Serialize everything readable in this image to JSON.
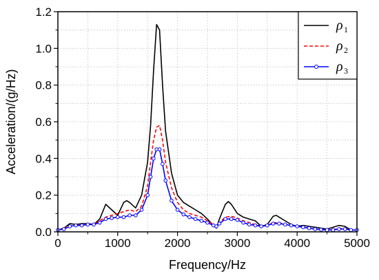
{
  "chart_data": {
    "type": "line",
    "title": "",
    "xlabel": "Frequency/Hz",
    "ylabel": "Acceleration/(g/Hz)",
    "xlim": [
      0,
      5000
    ],
    "ylim": [
      0,
      1.2
    ],
    "xticks": [
      0,
      1000,
      2000,
      3000,
      4000,
      5000
    ],
    "yticks": [
      0.0,
      0.2,
      0.4,
      0.6,
      0.8,
      1.0,
      1.2
    ],
    "xtick_labels": [
      "0",
      "1000",
      "2000",
      "3000",
      "4000",
      "5000"
    ],
    "ytick_labels": [
      "0.0",
      "0.2",
      "0.4",
      "0.6",
      "0.8",
      "1.0",
      "1.2"
    ],
    "grid": true,
    "legend_position": "top-right",
    "series": [
      {
        "name": "ρ",
        "subscript": "1",
        "color": "#000000",
        "style": "solid",
        "marker": "none",
        "x": [
          0,
          100,
          200,
          300,
          400,
          500,
          600,
          700,
          800,
          900,
          1000,
          1100,
          1150,
          1200,
          1300,
          1400,
          1500,
          1550,
          1600,
          1650,
          1700,
          1750,
          1800,
          1900,
          2000,
          2100,
          2200,
          2300,
          2400,
          2500,
          2600,
          2650,
          2700,
          2800,
          2850,
          2900,
          3000,
          3100,
          3200,
          3300,
          3400,
          3500,
          3600,
          3650,
          3700,
          3800,
          3900,
          4000,
          4100,
          4200,
          4300,
          4400,
          4500,
          4600,
          4700,
          4800,
          4900,
          5000
        ],
        "y": [
          0.01,
          0.02,
          0.045,
          0.04,
          0.045,
          0.045,
          0.04,
          0.07,
          0.15,
          0.12,
          0.09,
          0.16,
          0.17,
          0.16,
          0.13,
          0.2,
          0.38,
          0.58,
          0.88,
          1.13,
          1.1,
          0.8,
          0.55,
          0.32,
          0.2,
          0.16,
          0.14,
          0.12,
          0.1,
          0.07,
          0.035,
          0.02,
          0.07,
          0.15,
          0.165,
          0.15,
          0.1,
          0.08,
          0.07,
          0.06,
          0.03,
          0.04,
          0.085,
          0.09,
          0.08,
          0.06,
          0.04,
          0.03,
          0.035,
          0.03,
          0.025,
          0.02,
          0.015,
          0.025,
          0.035,
          0.03,
          0.01,
          0.01
        ]
      },
      {
        "name": "ρ",
        "subscript": "2",
        "color": "#ff0000",
        "style": "dashed",
        "marker": "none",
        "x": [
          0,
          100,
          200,
          300,
          400,
          500,
          600,
          700,
          800,
          900,
          1000,
          1100,
          1200,
          1300,
          1400,
          1500,
          1550,
          1600,
          1650,
          1700,
          1750,
          1800,
          1900,
          2000,
          2100,
          2200,
          2300,
          2400,
          2500,
          2600,
          2650,
          2700,
          2800,
          2900,
          3000,
          3100,
          3200,
          3300,
          3400,
          3500,
          3600,
          3700,
          3800,
          3900,
          4000,
          4100,
          4200,
          4300,
          4400,
          4500,
          4600,
          4700,
          4800,
          4900,
          5000
        ],
        "y": [
          0.01,
          0.02,
          0.035,
          0.035,
          0.04,
          0.04,
          0.04,
          0.06,
          0.08,
          0.09,
          0.1,
          0.11,
          0.12,
          0.11,
          0.14,
          0.25,
          0.38,
          0.5,
          0.57,
          0.58,
          0.5,
          0.38,
          0.24,
          0.16,
          0.12,
          0.1,
          0.09,
          0.08,
          0.06,
          0.04,
          0.03,
          0.05,
          0.08,
          0.085,
          0.075,
          0.06,
          0.05,
          0.04,
          0.03,
          0.035,
          0.05,
          0.05,
          0.04,
          0.035,
          0.03,
          0.025,
          0.02,
          0.015,
          0.012,
          0.01,
          0.012,
          0.018,
          0.018,
          0.012,
          0.01
        ]
      },
      {
        "name": "ρ",
        "subscript": "3",
        "color": "#0000ff",
        "style": "solid",
        "marker": "circle",
        "x": [
          0,
          100,
          200,
          300,
          400,
          500,
          600,
          700,
          800,
          900,
          1000,
          1100,
          1200,
          1300,
          1400,
          1500,
          1550,
          1600,
          1650,
          1700,
          1750,
          1800,
          1900,
          2000,
          2100,
          2200,
          2300,
          2400,
          2500,
          2600,
          2650,
          2700,
          2800,
          2900,
          3000,
          3100,
          3200,
          3300,
          3400,
          3500,
          3600,
          3700,
          3800,
          3900,
          4000,
          4100,
          4200,
          4300,
          4400,
          4500,
          4600,
          4700,
          4800,
          4900,
          5000
        ],
        "y": [
          0.01,
          0.015,
          0.03,
          0.035,
          0.035,
          0.04,
          0.04,
          0.05,
          0.07,
          0.075,
          0.08,
          0.08,
          0.09,
          0.09,
          0.12,
          0.2,
          0.3,
          0.4,
          0.45,
          0.45,
          0.37,
          0.28,
          0.17,
          0.12,
          0.095,
          0.08,
          0.07,
          0.06,
          0.05,
          0.035,
          0.03,
          0.045,
          0.07,
          0.07,
          0.065,
          0.05,
          0.04,
          0.035,
          0.03,
          0.035,
          0.045,
          0.045,
          0.04,
          0.035,
          0.03,
          0.025,
          0.02,
          0.015,
          0.012,
          0.01,
          0.01,
          0.015,
          0.015,
          0.01,
          0.01
        ]
      }
    ]
  }
}
